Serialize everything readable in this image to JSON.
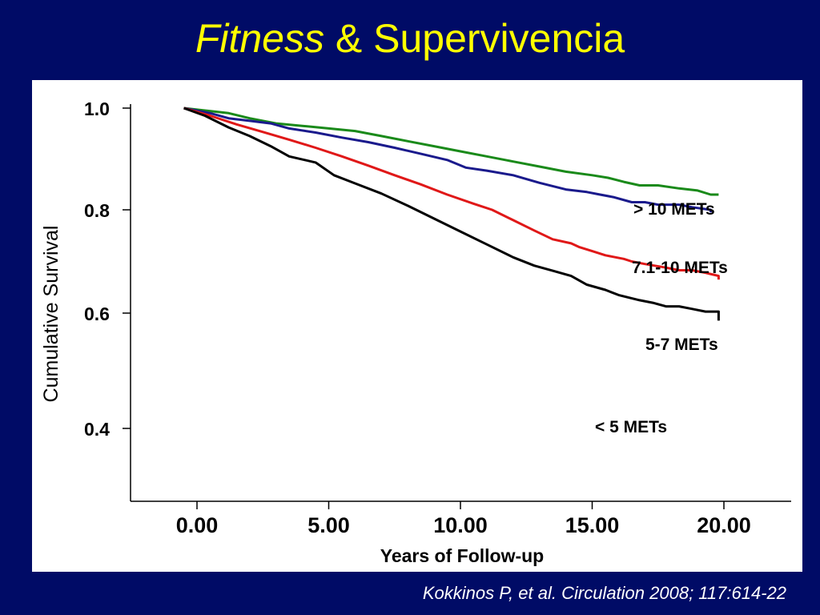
{
  "slide": {
    "title_italic": "Fitness",
    "title_rest": " & Supervivencia",
    "citation": "Kokkinos P, et al. Circulation 2008; 117:614-22"
  },
  "chart_data": {
    "type": "line",
    "xlabel": "Years of Follow-up",
    "ylabel": "Cumulative Survival",
    "x_ticks": [
      0,
      5,
      10,
      15,
      20
    ],
    "x_tick_labels": [
      "0.00",
      "5.00",
      "10.00",
      "15.00",
      "20.00"
    ],
    "y_ticks": [
      1.0,
      0.8,
      0.6,
      0.4
    ],
    "y_tick_labels": [
      "1.0",
      "0.8",
      "0.6",
      "0.4"
    ],
    "xlim": [
      -2.3,
      22.5
    ],
    "ylim": [
      0.3,
      1.0
    ],
    "grid": false,
    "legend": "inline labels at line ends",
    "series": [
      {
        "name": "> 10 METs",
        "color": "#1a8a1a",
        "points": [
          [
            -0.5,
            1.0
          ],
          [
            1.2,
            0.99
          ],
          [
            2.0,
            0.98
          ],
          [
            3.0,
            0.97
          ],
          [
            4.0,
            0.965
          ],
          [
            5.0,
            0.96
          ],
          [
            6.0,
            0.955
          ],
          [
            7.0,
            0.945
          ],
          [
            8.0,
            0.935
          ],
          [
            9.0,
            0.925
          ],
          [
            10.0,
            0.915
          ],
          [
            11.0,
            0.905
          ],
          [
            12.0,
            0.895
          ],
          [
            13.0,
            0.885
          ],
          [
            14.0,
            0.875
          ],
          [
            15.0,
            0.868
          ],
          [
            15.6,
            0.863
          ],
          [
            16.2,
            0.855
          ],
          [
            16.8,
            0.848
          ],
          [
            17.5,
            0.848
          ],
          [
            18.3,
            0.842
          ],
          [
            19.0,
            0.838
          ],
          [
            19.5,
            0.83
          ],
          [
            19.8,
            0.83
          ]
        ]
      },
      {
        "name": "7.1-10 METs",
        "color": "#1a1a8c",
        "points": [
          [
            -0.5,
            1.0
          ],
          [
            0.5,
            0.99
          ],
          [
            1.2,
            0.98
          ],
          [
            2.0,
            0.975
          ],
          [
            2.8,
            0.97
          ],
          [
            3.5,
            0.96
          ],
          [
            4.5,
            0.952
          ],
          [
            5.5,
            0.942
          ],
          [
            6.5,
            0.933
          ],
          [
            7.5,
            0.922
          ],
          [
            8.5,
            0.91
          ],
          [
            9.5,
            0.898
          ],
          [
            10.2,
            0.883
          ],
          [
            11.0,
            0.877
          ],
          [
            12.0,
            0.868
          ],
          [
            13.0,
            0.853
          ],
          [
            14.0,
            0.84
          ],
          [
            14.8,
            0.835
          ],
          [
            15.3,
            0.83
          ],
          [
            15.8,
            0.825
          ],
          [
            16.5,
            0.815
          ],
          [
            17.0,
            0.815
          ],
          [
            17.5,
            0.81
          ],
          [
            18.3,
            0.81
          ],
          [
            18.8,
            0.805
          ],
          [
            19.5,
            0.8
          ],
          [
            19.5,
            0.795
          ]
        ]
      },
      {
        "name": "5-7 METs",
        "color": "#e01818",
        "points": [
          [
            -0.5,
            1.0
          ],
          [
            0.5,
            0.985
          ],
          [
            1.5,
            0.968
          ],
          [
            2.5,
            0.953
          ],
          [
            3.5,
            0.938
          ],
          [
            4.5,
            0.922
          ],
          [
            5.5,
            0.905
          ],
          [
            6.5,
            0.887
          ],
          [
            7.5,
            0.868
          ],
          [
            8.5,
            0.85
          ],
          [
            9.5,
            0.83
          ],
          [
            10.5,
            0.812
          ],
          [
            11.2,
            0.8
          ],
          [
            12.0,
            0.78
          ],
          [
            12.8,
            0.76
          ],
          [
            13.5,
            0.743
          ],
          [
            14.2,
            0.735
          ],
          [
            14.5,
            0.728
          ],
          [
            15.0,
            0.72
          ],
          [
            15.5,
            0.712
          ],
          [
            16.2,
            0.705
          ],
          [
            16.5,
            0.7
          ],
          [
            17.0,
            0.695
          ],
          [
            17.8,
            0.688
          ],
          [
            18.3,
            0.683
          ],
          [
            18.8,
            0.683
          ],
          [
            19.3,
            0.678
          ],
          [
            19.8,
            0.672
          ],
          [
            19.8,
            0.665
          ]
        ]
      },
      {
        "name": "< 5 METs",
        "color": "#000000",
        "points": [
          [
            -0.5,
            1.0
          ],
          [
            0.3,
            0.985
          ],
          [
            1.2,
            0.962
          ],
          [
            2.0,
            0.945
          ],
          [
            2.8,
            0.925
          ],
          [
            3.5,
            0.905
          ],
          [
            4.5,
            0.893
          ],
          [
            5.2,
            0.868
          ],
          [
            6.0,
            0.852
          ],
          [
            7.0,
            0.832
          ],
          [
            8.0,
            0.808
          ],
          [
            9.0,
            0.783
          ],
          [
            10.0,
            0.758
          ],
          [
            11.0,
            0.733
          ],
          [
            12.0,
            0.708
          ],
          [
            12.8,
            0.692
          ],
          [
            13.5,
            0.682
          ],
          [
            14.2,
            0.672
          ],
          [
            14.8,
            0.655
          ],
          [
            15.5,
            0.645
          ],
          [
            16.0,
            0.635
          ],
          [
            16.8,
            0.625
          ],
          [
            17.3,
            0.62
          ],
          [
            17.8,
            0.613
          ],
          [
            18.3,
            0.613
          ],
          [
            18.8,
            0.608
          ],
          [
            19.3,
            0.603
          ],
          [
            19.8,
            0.603
          ],
          [
            19.8,
            0.587
          ]
        ]
      }
    ],
    "series_labels": [
      {
        "text": "> 10 METs",
        "series": 0
      },
      {
        "text": "7.1-10 METs",
        "series": 1
      },
      {
        "text": "5-7 METs",
        "series": 2
      },
      {
        "text": "< 5 METs",
        "series": 3
      }
    ]
  }
}
